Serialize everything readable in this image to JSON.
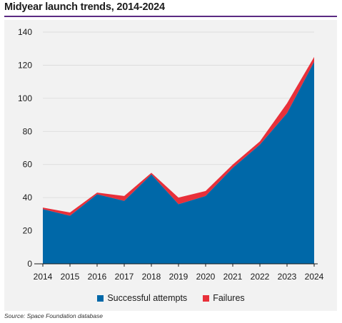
{
  "title": "Midyear launch trends, 2014-2024",
  "source": "Source: Space Foundation database",
  "colors": {
    "success": "#0068a8",
    "failure": "#e8303a",
    "accent_rule": "#5b2a82",
    "panel": "#f2f2f2"
  },
  "chart_data": {
    "type": "area",
    "stacked": true,
    "title": "Midyear launch trends, 2014-2024",
    "x": [
      "2014",
      "2015",
      "2016",
      "2017",
      "2018",
      "2019",
      "2020",
      "2021",
      "2022",
      "2023",
      "2024"
    ],
    "series": [
      {
        "name": "Successful attempts",
        "color": "#0068a8",
        "values": [
          33,
          29,
          42,
          38,
          54,
          36,
          41,
          58,
          72,
          91,
          122
        ]
      },
      {
        "name": "Failures",
        "color": "#e8303a",
        "values": [
          1,
          2,
          1,
          3,
          1,
          4,
          3,
          2,
          2,
          6,
          3
        ]
      }
    ],
    "ylim": [
      0,
      140
    ],
    "yticks": [
      "0",
      "20",
      "40",
      "60",
      "80",
      "100",
      "120",
      "140"
    ],
    "grid": true,
    "legend": "bottom-center"
  }
}
